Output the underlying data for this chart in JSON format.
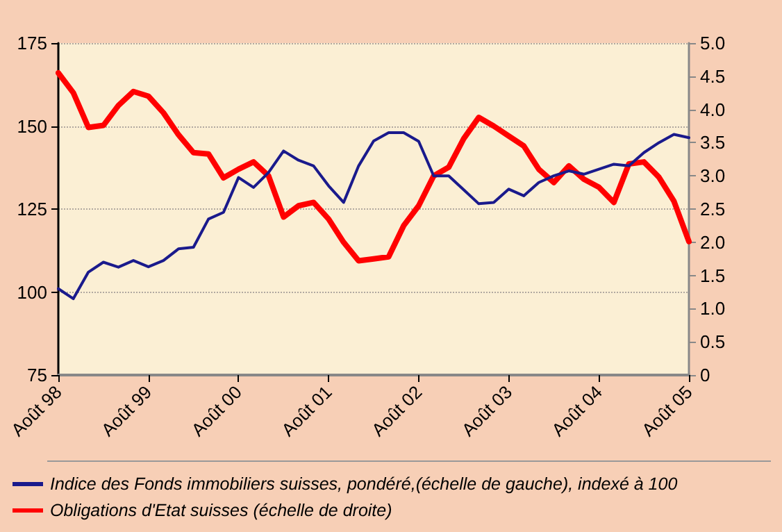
{
  "chart_data": {
    "type": "line",
    "categories": [
      "Août 98",
      null,
      null,
      null,
      null,
      null,
      "Août 99",
      null,
      null,
      null,
      null,
      null,
      "Août 00",
      null,
      null,
      null,
      null,
      null,
      "Août 01",
      null,
      null,
      null,
      null,
      null,
      "Août 02",
      null,
      null,
      null,
      null,
      null,
      "Août 03",
      null,
      null,
      null,
      null,
      null,
      "Août 04",
      null,
      null,
      null,
      null,
      null,
      "Août 05"
    ],
    "series": [
      {
        "name": "Indice des Fonds immobiliers suisses, pondéré,(échelle de gauche), indexé à 100",
        "color": "#1a1a8c",
        "values": [
          101,
          98,
          106,
          109,
          107.5,
          109.5,
          107.6,
          109.5,
          113,
          113.5,
          122,
          124,
          134.5,
          131.5,
          136,
          142.5,
          139.7,
          138,
          132,
          127,
          138,
          145.5,
          148,
          148,
          145.4,
          135,
          135,
          130.8,
          126.6,
          127,
          131,
          129,
          133,
          135,
          136.5,
          135.5,
          137,
          138.5,
          138,
          142,
          145,
          147.5,
          146.5
        ]
      },
      {
        "name": "Obligations d'Etat suisses (échelle de droite)",
        "color": "#ff0000",
        "axis": "y2",
        "values": [
          4.55,
          4.25,
          3.73,
          3.76,
          4.06,
          4.27,
          4.2,
          3.95,
          3.62,
          3.35,
          3.33,
          2.97,
          3.1,
          3.21,
          3.0,
          2.38,
          2.55,
          2.6,
          2.35,
          2.0,
          1.72,
          1.75,
          1.78,
          2.25,
          2.55,
          3.0,
          3.13,
          3.56,
          3.88,
          3.75,
          3.6,
          3.45,
          3.1,
          2.9,
          3.15,
          2.95,
          2.83,
          2.6,
          3.18,
          3.21,
          2.98,
          2.62,
          2.01
        ]
      }
    ],
    "ylim": [
      75,
      175
    ],
    "yticks": [
      75,
      100,
      125,
      150,
      175
    ],
    "y2lim": [
      0,
      5
    ],
    "y2ticks": [
      0,
      0.5,
      {
        "value": 1,
        "label": "1.0"
      },
      1.5,
      {
        "value": 2,
        "label": "2.0"
      },
      2.5,
      {
        "value": 3,
        "label": "3.0"
      },
      3.5,
      {
        "value": 4,
        "label": "4.0"
      },
      4.5,
      {
        "value": 5,
        "label": "5.0"
      }
    ],
    "grid": "y",
    "legend": "bottom",
    "marker": "none",
    "line_style": "solid"
  }
}
